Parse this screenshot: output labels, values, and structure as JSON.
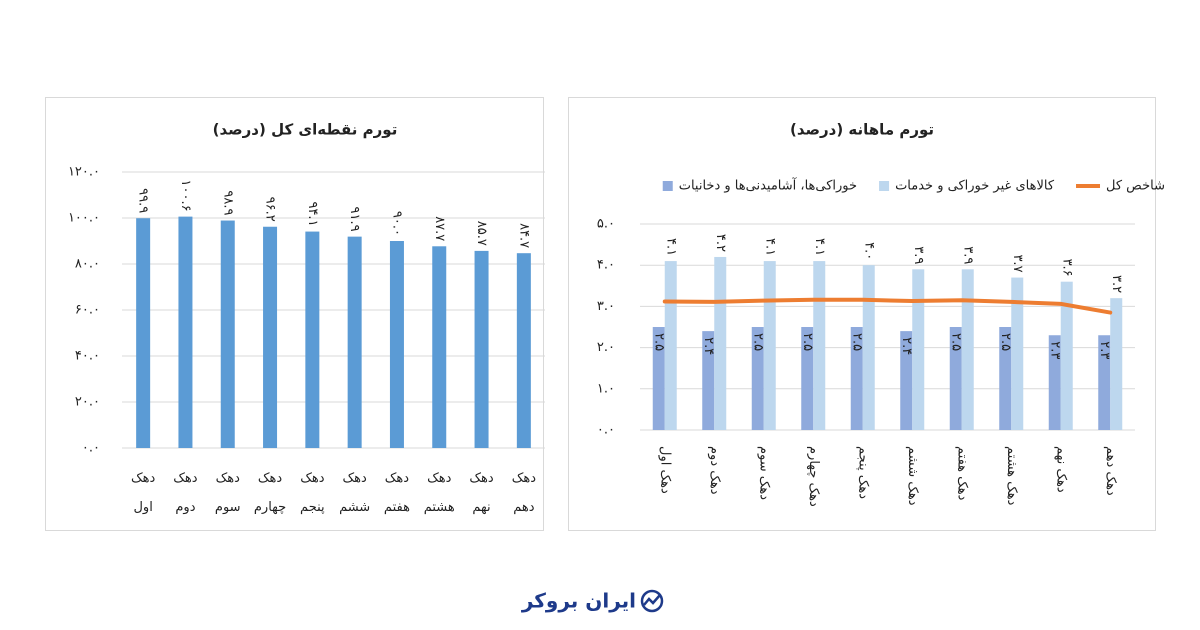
{
  "chart_data": [
    {
      "type": "bar",
      "title": "تورم نقطه‌ای کل (درصد)",
      "categories": [
        "دهک اول",
        "دهک دوم",
        "دهک سوم",
        "دهک چهارم",
        "دهک پنجم",
        "دهک ششم",
        "دهک هفتم",
        "دهک هشتم",
        "دهک نهم",
        "دهک دهم"
      ],
      "values": [
        99.9,
        100.6,
        98.9,
        96.2,
        94.1,
        91.9,
        90.0,
        87.7,
        85.7,
        84.7
      ],
      "value_labels": [
        "۹۹.۹",
        "۱۰۰.۶",
        "۹۸.۹",
        "۹۶.۲",
        "۹۴.۱",
        "۹۱.۹",
        "۹۰.۰",
        "۸۷.۷",
        "۸۵.۷",
        "۸۴.۷"
      ],
      "label_position": "outside",
      "color": "#5b9bd5",
      "ylim": [
        0,
        120
      ],
      "yticks": [
        {
          "value": 0,
          "label": "۰.۰"
        },
        {
          "value": 20,
          "label": "۲۰.۰"
        },
        {
          "value": 40,
          "label": "۴۰.۰"
        },
        {
          "value": 60,
          "label": "۶۰.۰"
        },
        {
          "value": 80,
          "label": "۸۰.۰"
        },
        {
          "value": 100,
          "label": "۱۰۰.۰"
        },
        {
          "value": 120,
          "label": "۱۲۰.۰"
        }
      ],
      "grid": true,
      "x_label_rotation": 0
    },
    {
      "type": "combo",
      "title": "تورم ماهانه (درصد)",
      "categories": [
        "دهک اول",
        "دهک دوم",
        "دهک سوم",
        "دهک چهارم",
        "دهک پنجم",
        "دهک ششم",
        "دهک هفتم",
        "دهک هشتم",
        "دهک نهم",
        "دهک دهم"
      ],
      "series": [
        {
          "name": "خوراکی‌ها، آشامیدنی‌ها و دخانیات",
          "type": "bar",
          "color": "#8faadc",
          "label_position": "inside",
          "values": [
            2.5,
            2.4,
            2.5,
            2.5,
            2.5,
            2.4,
            2.5,
            2.5,
            2.3,
            2.3
          ],
          "value_labels": [
            "۲.۵",
            "۲.۴",
            "۲.۵",
            "۲.۵",
            "۲.۵",
            "۲.۴",
            "۲.۵",
            "۲.۵",
            "۲.۳",
            "۲.۳"
          ]
        },
        {
          "name": "کالاهای غیر خوراکی و خدمات",
          "type": "bar",
          "color": "#bdd7ee",
          "label_position": "outside",
          "values": [
            4.1,
            4.2,
            4.1,
            4.1,
            4.0,
            3.9,
            3.9,
            3.7,
            3.6,
            3.2
          ],
          "value_labels": [
            "۴.۱",
            "۴.۲",
            "۴.۱",
            "۴.۱",
            "۴.۰",
            "۳.۹",
            "۳.۹",
            "۳.۷",
            "۳.۶",
            "۳.۲"
          ]
        },
        {
          "name": "شاخص کل",
          "type": "line",
          "color": "#ed7d31",
          "values": [
            3.12,
            3.11,
            3.14,
            3.16,
            3.16,
            3.13,
            3.15,
            3.11,
            3.06,
            2.85
          ]
        }
      ],
      "ylim": [
        0,
        5
      ],
      "yticks": [
        {
          "value": 0,
          "label": "۰.۰"
        },
        {
          "value": 1,
          "label": "۱.۰"
        },
        {
          "value": 2,
          "label": "۲.۰"
        },
        {
          "value": 3,
          "label": "۳.۰"
        },
        {
          "value": 4,
          "label": "۴.۰"
        },
        {
          "value": 5,
          "label": "۵.۰"
        }
      ],
      "grid": true,
      "legend": "top",
      "x_label_rotation": 90
    }
  ],
  "footer": {
    "logo": "ایران بروکر"
  }
}
